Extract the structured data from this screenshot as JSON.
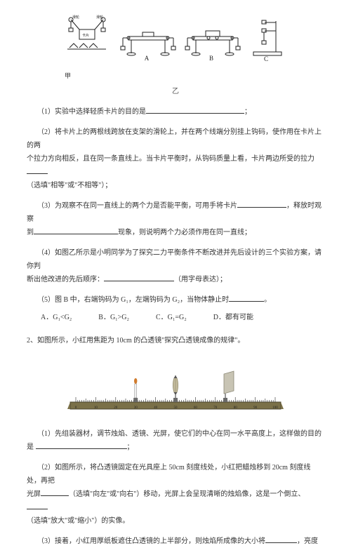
{
  "fig1": {
    "labels": {
      "a": "A",
      "b": "B",
      "c": "C",
      "below": "甲"
    },
    "colors": {
      "stroke": "#222222",
      "fill": "#ffffff"
    }
  },
  "loneChar": "乙",
  "q1_1": {
    "prefix": "（1）实验中选择轻质卡片的目的是",
    "suffix": "；"
  },
  "q1_2": {
    "line1": "（2）将卡片上的两根线跨放在支架的滑轮上，并在两个线端分别挂上钩码，使作用在卡片上的两",
    "line2a": "个拉力方向相反，且在同一条直线上。当卡片平衡时，从钩码质量上看，卡片两边所受的拉力",
    "line2b": "（选填\"相等\"或\"不相等\"）；"
  },
  "q1_3": {
    "a": "（3）为观察不在同一直线上的两个力是否能平衡，可用手将卡片",
    "b": "，释放时观察",
    "c": "到",
    "d": "现象，则说明两个力必须作用在同一直线；"
  },
  "q1_4": {
    "a": "（4）如图乙所示是小明同学为了探究二力平衡条件不断改进并先后设计的三个实验方案，请你判",
    "b": "断出他改进的先后顺序：",
    "c": "（用字母表达）；"
  },
  "q1_5": {
    "a": "（5）图 B 中，右端钩码为 G₁，左端钩码为 G₂，当物体静止时",
    "b": "。",
    "opts": {
      "A": "A．G₁<G₂",
      "B": "B．G₁>G₂",
      "C": "C．G₁=G₂",
      "D": "D．都有可能"
    }
  },
  "q2_title": "2、如图所示，小红用焦距为 10cm 的凸透镜\"探究凸透镜成像的规律\"。",
  "ruler": {
    "ticks": [
      "0",
      "10",
      "20",
      "30",
      "40",
      "50",
      "60",
      "70",
      "80",
      "90",
      "100"
    ],
    "colors": {
      "base": "#7a7048",
      "tick": "#2b2b2b",
      "lens": "#b9b08c",
      "screen": "#c8c4b4",
      "candle": "#6b6b6b",
      "flame": "#d07b2d"
    }
  },
  "q2_1": {
    "a": "（1）先组装器材，调节烛焰、透镜、光屏，使它们的中心在同一水平高度上，这样做的目的",
    "b": "是",
    "c": "；"
  },
  "q2_2": {
    "a": "（2）如图所示，将凸透镜固定在光具座上 50cm 刻度线处，小红把蜡烛移到 20cm 刻度线处，再把",
    "b": "光屏",
    "c": "（选填\"向左\"或\"向右\"）移动，光屏上会呈现清晰的烛焰像，这是一个倒立、",
    "d": "（选填\"放大\"或\"缩小\"）的实像。"
  },
  "q2_3": {
    "a": "（3）接着，小红用厚纸板遮住凸透镜的上半部分，则烛焰所成像的大小将",
    "b": "，亮度"
  }
}
